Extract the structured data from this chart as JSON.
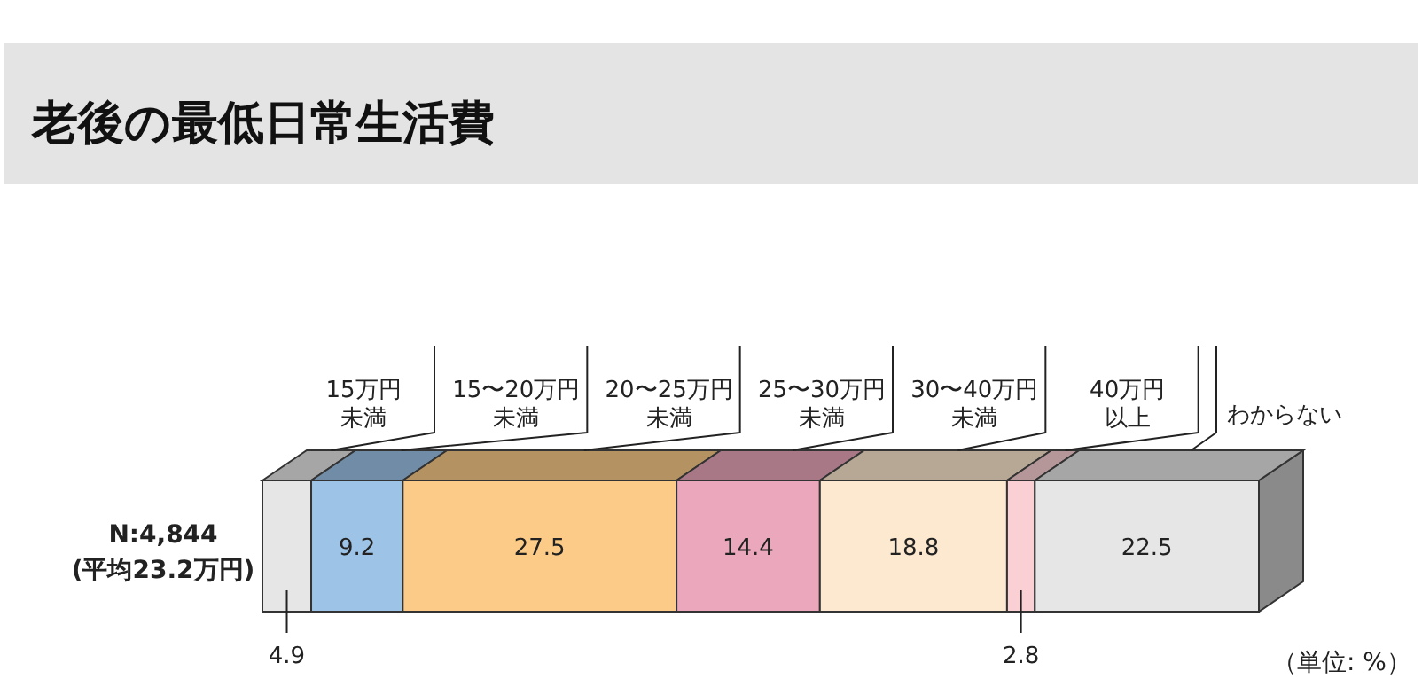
{
  "chart_data": {
    "type": "bar",
    "orientation": "horizontal",
    "stacked": true,
    "title": "老後の最低日常生活費",
    "categories": [
      "N:4,844\n(平均23.2万円)"
    ],
    "data_labels": true,
    "annotations": [
      "（単位: %）"
    ],
    "series": [
      {
        "name": "15万円未満",
        "color": "#e6e6e6",
        "values": [
          4.9
        ]
      },
      {
        "name": "15〜20万円未満",
        "color": "#9dc3e6",
        "values": [
          9.2
        ]
      },
      {
        "name": "20〜25万円未満",
        "color": "#fbcb87",
        "values": [
          27.5
        ]
      },
      {
        "name": "25〜30万円未満",
        "color": "#eba7bb",
        "values": [
          14.4
        ]
      },
      {
        "name": "30〜40万円未満",
        "color": "#fde9cf",
        "values": [
          18.8
        ]
      },
      {
        "name": "40万円以上",
        "color": "#fbd0d4",
        "values": [
          2.8
        ]
      },
      {
        "name": "わからない",
        "color": "#e6e6e6",
        "values": [
          22.5
        ]
      }
    ]
  }
}
